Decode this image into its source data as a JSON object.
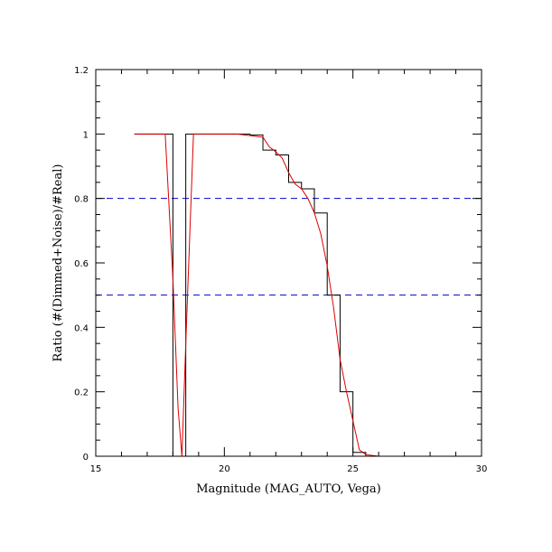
{
  "chart_data": {
    "type": "line",
    "xlabel": "Magnitude (MAG_AUTO, Vega)",
    "ylabel": "Ratio (#(Dimmed+Noise)/#Real)",
    "xlim": [
      15,
      30
    ],
    "ylim": [
      0,
      1.2
    ],
    "x_ticks": [
      15,
      20,
      25,
      30
    ],
    "y_ticks": [
      0,
      0.2,
      0.4,
      0.6,
      0.8,
      1,
      1.2
    ],
    "x_tick_labels": [
      "15",
      "20",
      "25",
      "30"
    ],
    "y_tick_labels": [
      "0",
      "0.2",
      "0.4",
      "0.6",
      "0.8",
      "1",
      "1.2"
    ],
    "grid": false,
    "reference_lines": [
      {
        "y": 0.8,
        "style": "dashed",
        "color": "#0000cc"
      },
      {
        "y": 0.5,
        "style": "dashed",
        "color": "#0000cc"
      }
    ],
    "series": [
      {
        "style": "step",
        "color": "#000000",
        "x": [
          16.5,
          17.0,
          17.5,
          18.0,
          18.5,
          19.0,
          19.5,
          20.0,
          20.5,
          21.0,
          21.5,
          22.0,
          22.5,
          23.0,
          23.5,
          24.0,
          24.5,
          25.0,
          25.5,
          26.0,
          26.5,
          27.0,
          27.5,
          28.0,
          28.5,
          29.0,
          29.5
        ],
        "y": [
          1.0,
          1.0,
          1.0,
          0.0,
          1.0,
          1.0,
          1.0,
          1.0,
          1.0,
          0.997,
          0.95,
          0.935,
          0.85,
          0.83,
          0.755,
          0.5,
          0.2,
          0.012,
          0.0,
          0.0,
          0.0,
          0.0,
          0.0,
          0.0,
          0.0,
          0.0,
          0.0
        ]
      },
      {
        "style": "line",
        "color": "#dd0000",
        "x": [
          16.5,
          17.0,
          17.5,
          17.7,
          18.0,
          18.2,
          18.35,
          18.5,
          18.8,
          19.0,
          19.5,
          20.0,
          20.5,
          21.0,
          21.5,
          21.75,
          22.0,
          22.25,
          22.5,
          22.75,
          23.0,
          23.25,
          23.5,
          23.75,
          24.0,
          24.25,
          24.5,
          24.75,
          25.0,
          25.25,
          25.5,
          26.0,
          27.0,
          28.0,
          29.0,
          30.0
        ],
        "y": [
          1.0,
          1.0,
          1.0,
          1.0,
          0.55,
          0.15,
          0.0,
          0.35,
          1.0,
          1.0,
          1.0,
          1.0,
          1.0,
          0.995,
          0.99,
          0.96,
          0.945,
          0.925,
          0.88,
          0.845,
          0.83,
          0.8,
          0.755,
          0.69,
          0.59,
          0.46,
          0.3,
          0.2,
          0.11,
          0.02,
          0.005,
          0.0,
          0.0,
          0.0,
          0.0,
          0.0
        ]
      }
    ]
  }
}
